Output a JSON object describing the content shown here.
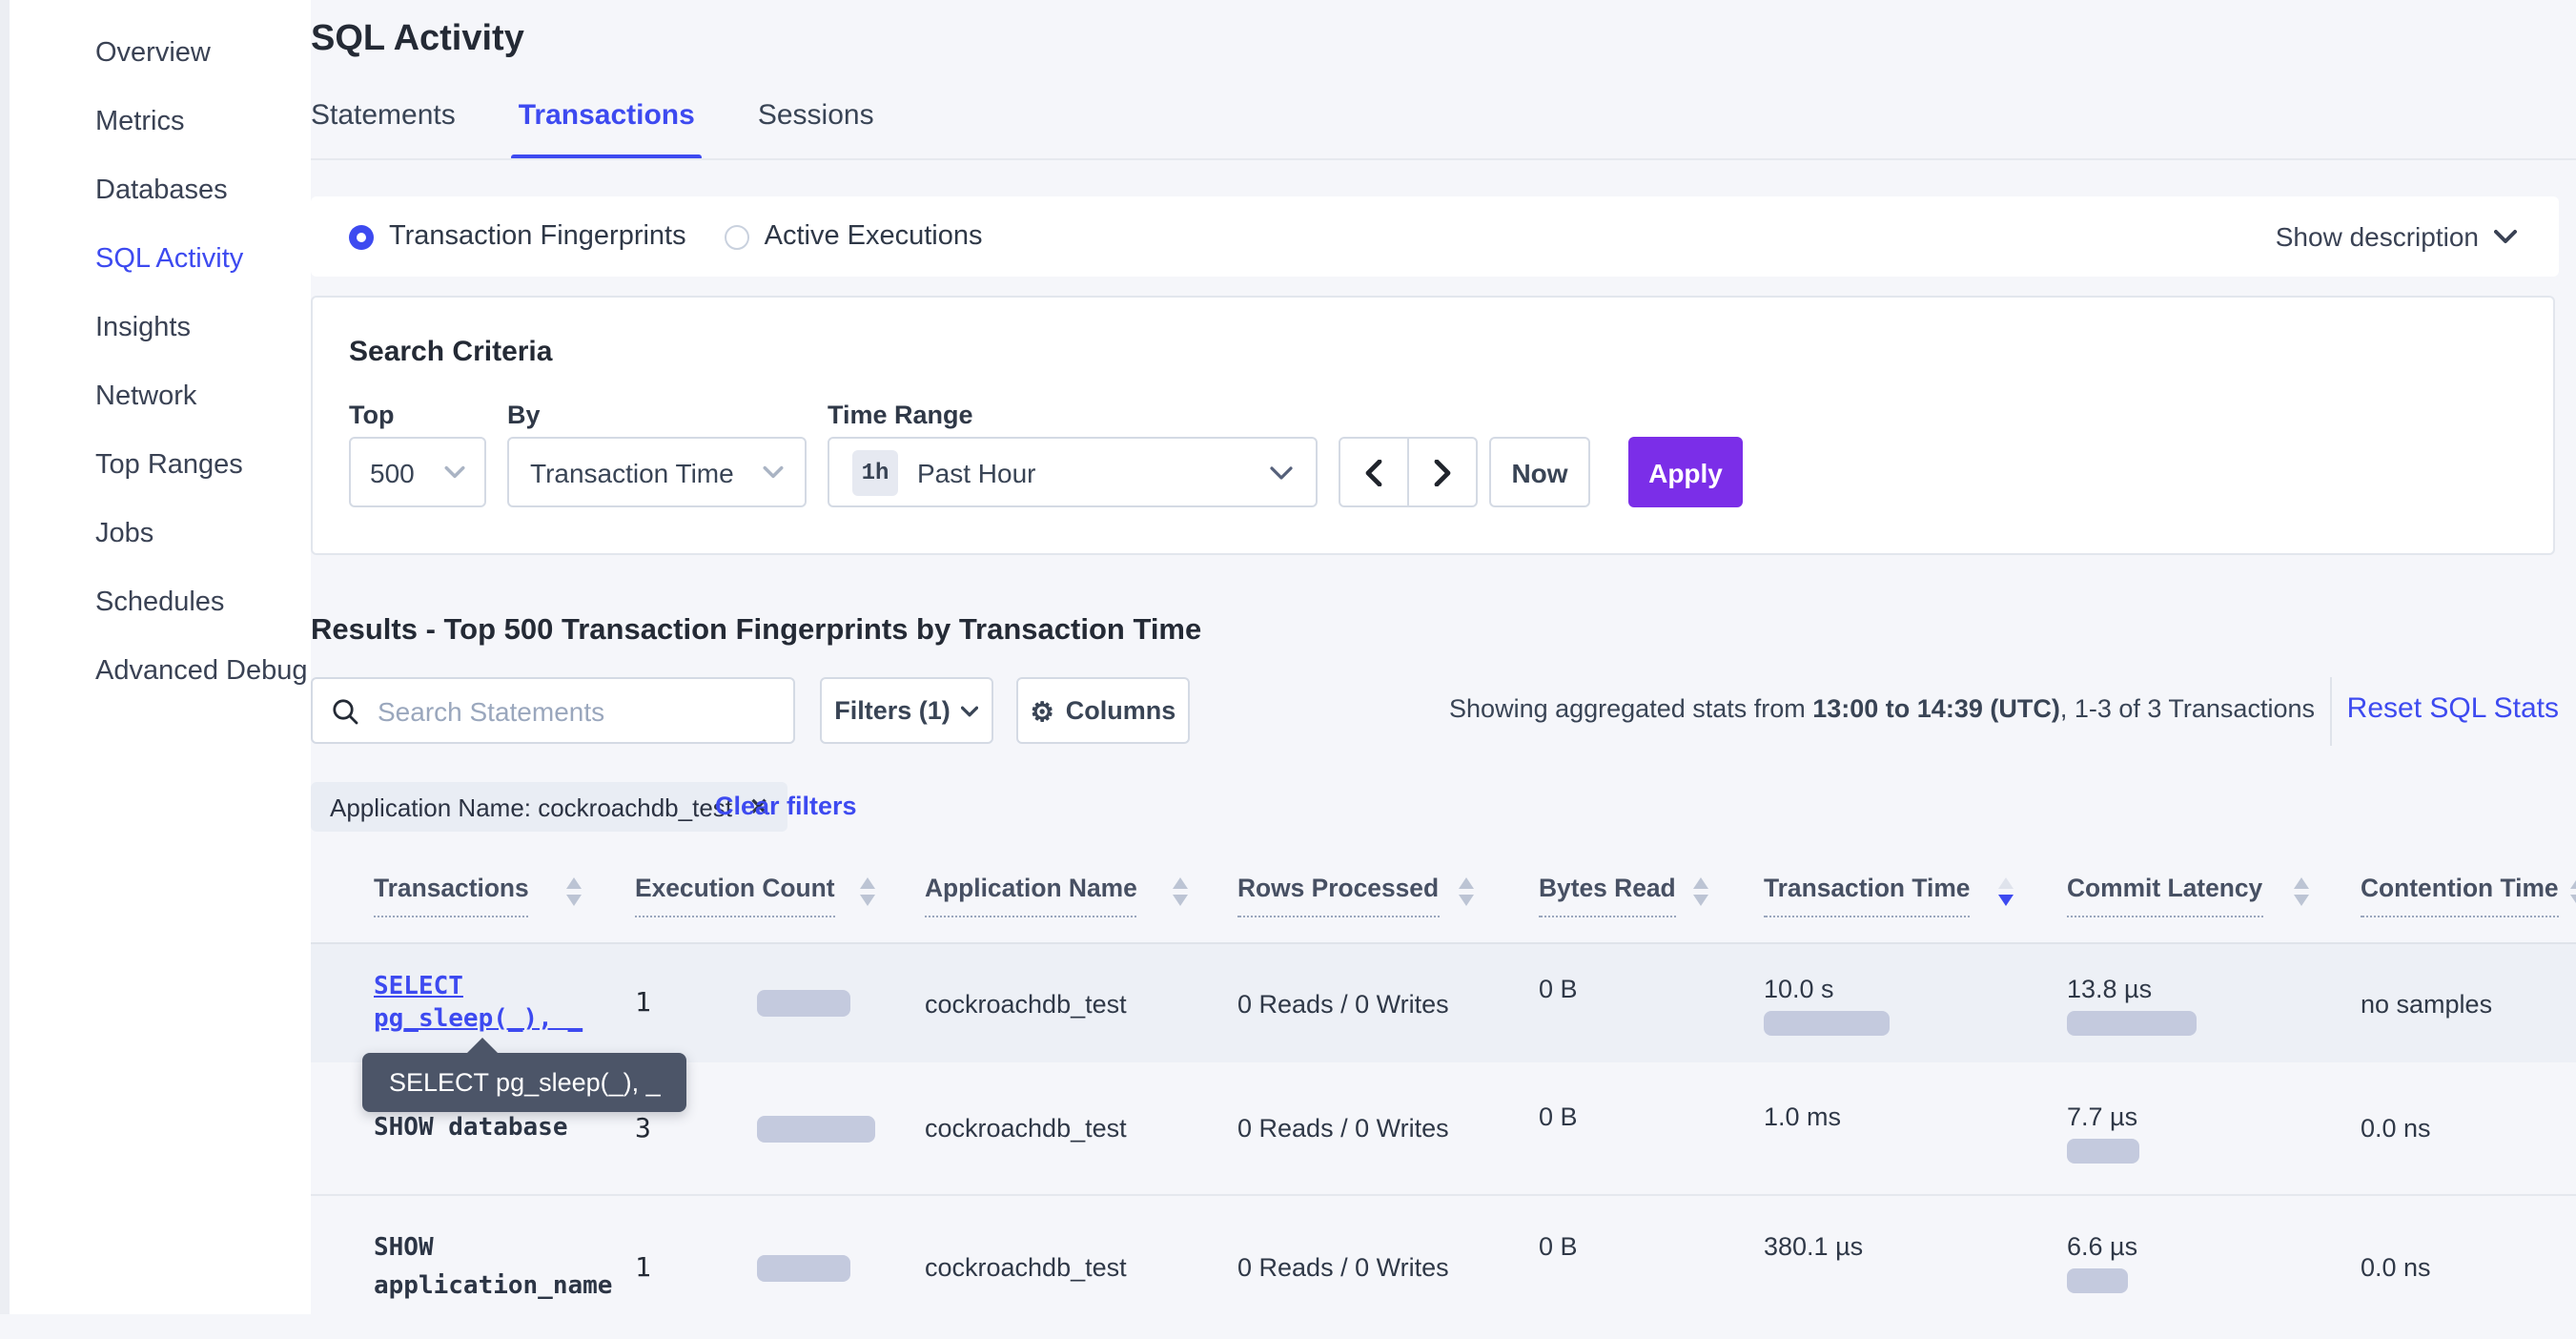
{
  "sidebar": {
    "items": [
      {
        "label": "Overview",
        "active": false
      },
      {
        "label": "Metrics",
        "active": false
      },
      {
        "label": "Databases",
        "active": false
      },
      {
        "label": "SQL Activity",
        "active": true
      },
      {
        "label": "Insights",
        "active": false
      },
      {
        "label": "Network",
        "active": false
      },
      {
        "label": "Top Ranges",
        "active": false
      },
      {
        "label": "Jobs",
        "active": false
      },
      {
        "label": "Schedules",
        "active": false
      },
      {
        "label": "Advanced Debug",
        "active": false
      }
    ]
  },
  "header": {
    "title": "SQL Activity",
    "tabs": [
      {
        "label": "Statements",
        "active": false
      },
      {
        "label": "Transactions",
        "active": true
      },
      {
        "label": "Sessions",
        "active": false
      }
    ]
  },
  "view_toggle": {
    "options": [
      {
        "label": "Transaction Fingerprints",
        "selected": true
      },
      {
        "label": "Active Executions",
        "selected": false
      }
    ],
    "show_description_label": "Show description"
  },
  "search_criteria": {
    "title": "Search Criteria",
    "top": {
      "label": "Top",
      "value": "500"
    },
    "by": {
      "label": "By",
      "value": "Transaction Time"
    },
    "time_range": {
      "label": "Time Range",
      "badge": "1h",
      "value": "Past Hour"
    },
    "now_label": "Now",
    "apply_label": "Apply"
  },
  "results": {
    "heading": "Results - Top 500 Transaction Fingerprints by Transaction Time",
    "search_placeholder": "Search Statements",
    "filters_label": "Filters (1)",
    "columns_label": "Columns",
    "stats_prefix": "Showing aggregated stats from ",
    "stats_range": "13:00 to 14:39 (UTC)",
    "stats_suffix": ", 1-3 of 3 Transactions",
    "reset_label": "Reset SQL Stats",
    "filter_chip": "Application Name: cockroachdb_test",
    "clear_filters_label": "Clear filters"
  },
  "tooltip": {
    "text": "SELECT pg_sleep(_), _"
  },
  "table": {
    "columns": [
      {
        "label": "Transactions",
        "sort": null
      },
      {
        "label": "Execution Count",
        "sort": null
      },
      {
        "label": "Application Name",
        "sort": null
      },
      {
        "label": "Rows Processed",
        "sort": null
      },
      {
        "label": "Bytes Read",
        "sort": null
      },
      {
        "label": "Transaction Time",
        "sort": "desc"
      },
      {
        "label": "Commit Latency",
        "sort": null
      },
      {
        "label": "Contention Time",
        "sort": null
      }
    ],
    "rows": [
      {
        "query_lines": [
          "SELECT",
          "pg_sleep(_), _"
        ],
        "execution_count": "1",
        "execution_bar_w": 49,
        "application_name": "cockroachdb_test",
        "rows_processed": "0 Reads / 0 Writes",
        "bytes_read": "0 B",
        "transaction_time": "10.0 s",
        "transaction_time_bar_w": 66,
        "commit_latency": "13.8 µs",
        "commit_latency_bar_w": 68,
        "contention_time": "no samples"
      },
      {
        "query_lines": [
          "SHOW database"
        ],
        "execution_count": "3",
        "execution_bar_w": 62,
        "application_name": "cockroachdb_test",
        "rows_processed": "0 Reads / 0 Writes",
        "bytes_read": "0 B",
        "transaction_time": "1.0 ms",
        "commit_latency": "7.7 µs",
        "commit_latency_bar_w": 38,
        "contention_time": "0.0 ns"
      },
      {
        "query_lines": [
          "SHOW",
          "application_name"
        ],
        "execution_count": "1",
        "execution_bar_w": 49,
        "application_name": "cockroachdb_test",
        "rows_processed": "0 Reads / 0 Writes",
        "bytes_read": "0 B",
        "transaction_time": "380.1 µs",
        "commit_latency": "6.6 µs",
        "commit_latency_bar_w": 32,
        "contention_time": "0.0 ns"
      }
    ]
  },
  "colors": {
    "accent_blue": "#3d4af0",
    "apply_purple": "#7b2ee8",
    "bar_fill": "#c4cade",
    "row_highlight": "#edf0f6",
    "tooltip_bg": "#4c5568"
  }
}
